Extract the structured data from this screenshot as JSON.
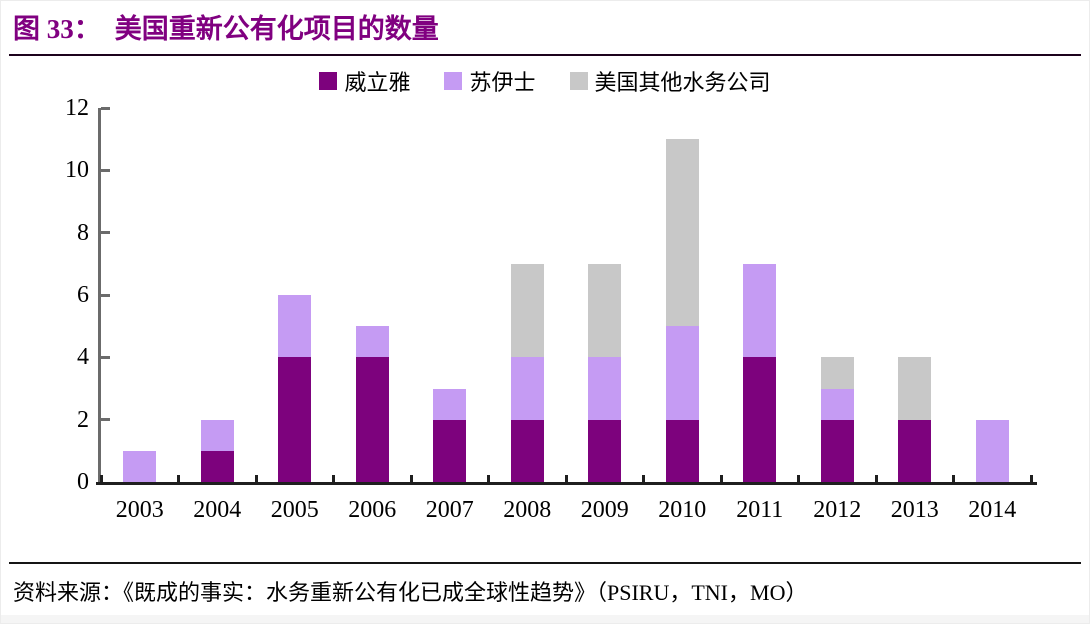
{
  "title": {
    "prefix": "图 33：",
    "text": "美国重新公有化项目的数量"
  },
  "source": "资料来源：《既成的事实：水务重新公有化已成全球性趋势》（PSIRU，TNI，MO）",
  "colors": {
    "title_accent": "#800080",
    "veolia": "#7D027D",
    "suez": "#C59BF3",
    "other_us": "#C8C8C8",
    "y_axis": "#6b6b6b",
    "x_axis": "#1f1f1f"
  },
  "chart_data": {
    "type": "bar",
    "stacked": true,
    "title": "美国重新公有化项目的数量",
    "categories": [
      "2003",
      "2004",
      "2005",
      "2006",
      "2007",
      "2008",
      "2009",
      "2010",
      "2011",
      "2012",
      "2013",
      "2014"
    ],
    "series": [
      {
        "name": "威立雅",
        "color": "#7D027D",
        "values": [
          0,
          1,
          4,
          4,
          2,
          2,
          2,
          2,
          4,
          2,
          2,
          0
        ]
      },
      {
        "name": "苏伊士",
        "color": "#C59BF3",
        "values": [
          1,
          1,
          2,
          1,
          1,
          2,
          2,
          3,
          3,
          1,
          0,
          2
        ]
      },
      {
        "name": "美国其他水务公司",
        "color": "#C8C8C8",
        "values": [
          0,
          0,
          0,
          0,
          0,
          3,
          3,
          6,
          0,
          1,
          2,
          0
        ]
      }
    ],
    "totals": [
      1,
      2,
      6,
      5,
      3,
      7,
      7,
      11,
      7,
      4,
      4,
      2
    ],
    "xlabel": "",
    "ylabel": "",
    "ylim": [
      0,
      12
    ],
    "yticks": [
      0,
      2,
      4,
      6,
      8,
      10,
      12
    ],
    "grid": false,
    "legend_position": "top-center"
  }
}
